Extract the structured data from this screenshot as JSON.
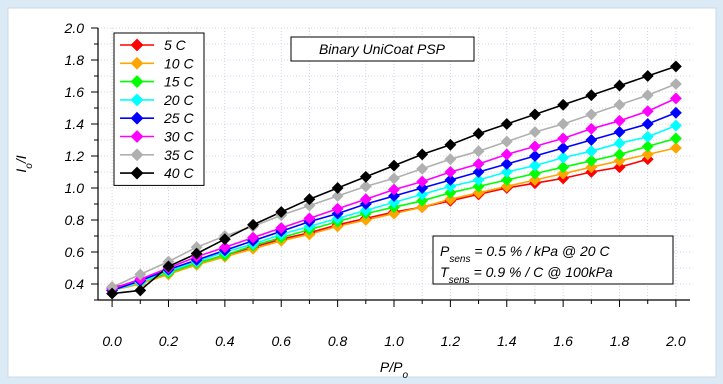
{
  "chart_data": {
    "type": "line",
    "title": "",
    "xlabel_main": "P/P",
    "xlabel_sub": "o",
    "ylabel_main": "I",
    "ylabel_sub": "o",
    "ylabel_tail": "/I",
    "xlim": [
      -0.05,
      2.05
    ],
    "ylim": [
      0.3,
      2.0
    ],
    "xticks": [
      "0.0",
      "0.2",
      "0.4",
      "0.6",
      "0.8",
      "1.0",
      "1.2",
      "1.4",
      "1.6",
      "1.8",
      "2.0"
    ],
    "yticks": [
      "0.4",
      "0.6",
      "0.8",
      "1.0",
      "1.2",
      "1.4",
      "1.6",
      "1.8",
      "2.0"
    ],
    "grid": true,
    "legend_position": "top-left",
    "annotation_title": "Binary UniCoat PSP",
    "annotation_lines": [
      {
        "main": "P",
        "sub": "sens",
        "text": " = 0.5 % / kPa @ 20 C"
      },
      {
        "main": "T",
        "sub": "sens",
        "text": " = 0.9 % / C @ 100kPa"
      }
    ],
    "x": [
      0.0,
      0.1,
      0.2,
      0.3,
      0.4,
      0.5,
      0.6,
      0.7,
      0.8,
      0.9,
      1.0,
      1.1,
      1.2,
      1.3,
      1.4,
      1.5,
      1.6,
      1.7,
      1.8,
      1.9,
      2.0
    ],
    "series": [
      {
        "name": "5 C",
        "color": "#ff0000",
        "values": [
          0.38,
          0.41,
          0.47,
          0.53,
          0.58,
          0.63,
          0.68,
          0.72,
          0.77,
          0.81,
          0.85,
          0.88,
          0.92,
          0.96,
          1.0,
          1.03,
          1.06,
          1.1,
          1.13,
          1.18,
          null
        ]
      },
      {
        "name": "10 C",
        "color": "#ffa500",
        "values": [
          0.36,
          0.4,
          0.46,
          0.52,
          0.57,
          0.62,
          0.67,
          0.71,
          0.76,
          0.8,
          0.84,
          0.88,
          0.93,
          0.97,
          1.01,
          1.05,
          1.09,
          1.13,
          1.17,
          1.21,
          1.25
        ]
      },
      {
        "name": "15 C",
        "color": "#00ff00",
        "values": [
          0.36,
          0.41,
          0.47,
          0.53,
          0.58,
          0.64,
          0.69,
          0.74,
          0.79,
          0.84,
          0.88,
          0.92,
          0.97,
          1.01,
          1.05,
          1.09,
          1.13,
          1.17,
          1.21,
          1.26,
          1.31
        ]
      },
      {
        "name": "20 C",
        "color": "#00ffff",
        "values": [
          0.36,
          0.41,
          0.48,
          0.54,
          0.6,
          0.65,
          0.71,
          0.76,
          0.81,
          0.86,
          0.91,
          0.96,
          1.01,
          1.05,
          1.1,
          1.14,
          1.19,
          1.23,
          1.28,
          1.32,
          1.39
        ]
      },
      {
        "name": "25 C",
        "color": "#0000ff",
        "values": [
          0.36,
          0.42,
          0.49,
          0.55,
          0.61,
          0.67,
          0.73,
          0.79,
          0.84,
          0.9,
          0.95,
          1.0,
          1.05,
          1.1,
          1.15,
          1.2,
          1.25,
          1.3,
          1.35,
          1.4,
          1.47
        ]
      },
      {
        "name": "30 C",
        "color": "#ff00ff",
        "values": [
          0.37,
          0.43,
          0.5,
          0.57,
          0.63,
          0.69,
          0.75,
          0.81,
          0.87,
          0.93,
          0.99,
          1.04,
          1.1,
          1.15,
          1.21,
          1.26,
          1.31,
          1.37,
          1.42,
          1.48,
          1.56
        ]
      },
      {
        "name": "35 C",
        "color": "#b0b0b0",
        "values": [
          0.38,
          0.46,
          0.54,
          0.63,
          0.7,
          0.76,
          0.83,
          0.89,
          0.95,
          1.01,
          1.06,
          1.12,
          1.18,
          1.23,
          1.29,
          1.35,
          1.4,
          1.46,
          1.52,
          1.58,
          1.65
        ]
      },
      {
        "name": "40 C",
        "color": "#000000",
        "values": [
          0.34,
          0.36,
          0.51,
          0.59,
          0.68,
          0.77,
          0.85,
          0.93,
          1.0,
          1.07,
          1.14,
          1.21,
          1.27,
          1.34,
          1.4,
          1.46,
          1.52,
          1.58,
          1.64,
          1.7,
          1.76
        ]
      }
    ]
  }
}
